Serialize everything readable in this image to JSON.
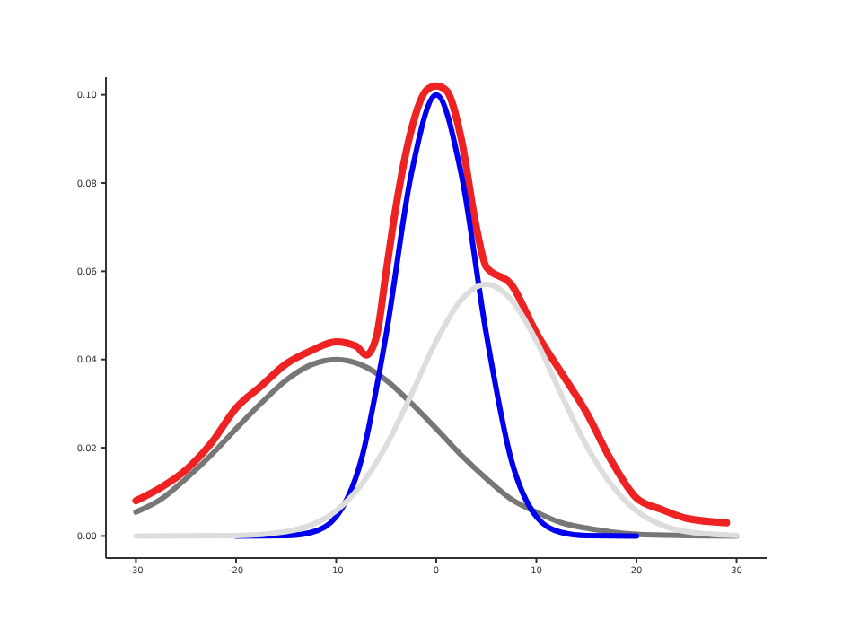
{
  "chart_data": {
    "type": "line",
    "xlim": [
      -33,
      33
    ],
    "ylim": [
      -0.005,
      0.104
    ],
    "xticks": [
      -30,
      -20,
      -10,
      0,
      10,
      20,
      30
    ],
    "yticks": [
      {
        "value": 0,
        "label": "0.00"
      },
      {
        "value": 0.02,
        "label": "0.02"
      },
      {
        "value": 0.04,
        "label": "0.04"
      },
      {
        "value": 0.06,
        "label": "0.06"
      },
      {
        "value": 0.08,
        "label": "0.08"
      },
      {
        "value": 0.1,
        "label": "0.10"
      }
    ],
    "marker": "none",
    "line_style": "solid",
    "series": [
      {
        "color": "#ee2222",
        "x": [
          -30,
          -27.5,
          -25,
          -22.5,
          -20,
          -17.5,
          -15,
          -12.5,
          -10,
          -8,
          -7,
          -6,
          -5,
          -4,
          -2.5,
          -1,
          0,
          1,
          2.5,
          4,
          5,
          7.5,
          10,
          12.5,
          15,
          17.5,
          20,
          22.5,
          25,
          29
        ],
        "values": [
          0.008,
          0.011,
          0.015,
          0.021,
          0.029,
          0.034,
          0.039,
          0.042,
          0.044,
          0.043,
          0.041,
          0.045,
          0.06,
          0.075,
          0.092,
          0.101,
          0.102,
          0.101,
          0.09,
          0.07,
          0.061,
          0.057,
          0.046,
          0.037,
          0.028,
          0.017,
          0.0086,
          0.006,
          0.004,
          0.003
        ]
      },
      {
        "color": "#777777",
        "x": [
          -30,
          -27.5,
          -25,
          -22.5,
          -20,
          -17.5,
          -15,
          -12.5,
          -10,
          -7.5,
          -5,
          -2.5,
          0,
          2.5,
          5,
          7.5,
          10,
          12.5,
          15,
          17.5,
          20,
          25,
          30
        ],
        "values": [
          0.0054,
          0.0083,
          0.013,
          0.0183,
          0.0243,
          0.0301,
          0.0353,
          0.0388,
          0.04,
          0.0388,
          0.0353,
          0.0301,
          0.0243,
          0.0183,
          0.013,
          0.0083,
          0.0054,
          0.003,
          0.0018,
          0.0009,
          0.0004,
          0.0001,
          0
        ]
      },
      {
        "color": "#0000ee",
        "x": [
          -20,
          -15,
          -12.5,
          -10,
          -7.5,
          -5,
          -2.5,
          0,
          2.5,
          5,
          7.5,
          10,
          12.5,
          15,
          20
        ],
        "values": [
          0,
          0.0001,
          0.0008,
          0.0044,
          0.0172,
          0.0458,
          0.082,
          0.1,
          0.082,
          0.0458,
          0.0172,
          0.0044,
          0.0008,
          0.0001,
          0
        ]
      },
      {
        "color": "#dddddd",
        "x": [
          -30,
          -20,
          -15,
          -12.5,
          -10,
          -7.5,
          -5,
          -2.5,
          0,
          2.5,
          5,
          7.5,
          10,
          12.5,
          15,
          17.5,
          20,
          22.5,
          25,
          30
        ],
        "values": [
          0,
          0.0001,
          0.001,
          0.0025,
          0.0057,
          0.0116,
          0.0205,
          0.032,
          0.0442,
          0.0535,
          0.057,
          0.0535,
          0.0442,
          0.032,
          0.0205,
          0.0116,
          0.0057,
          0.0025,
          0.001,
          0.0001
        ]
      }
    ]
  }
}
